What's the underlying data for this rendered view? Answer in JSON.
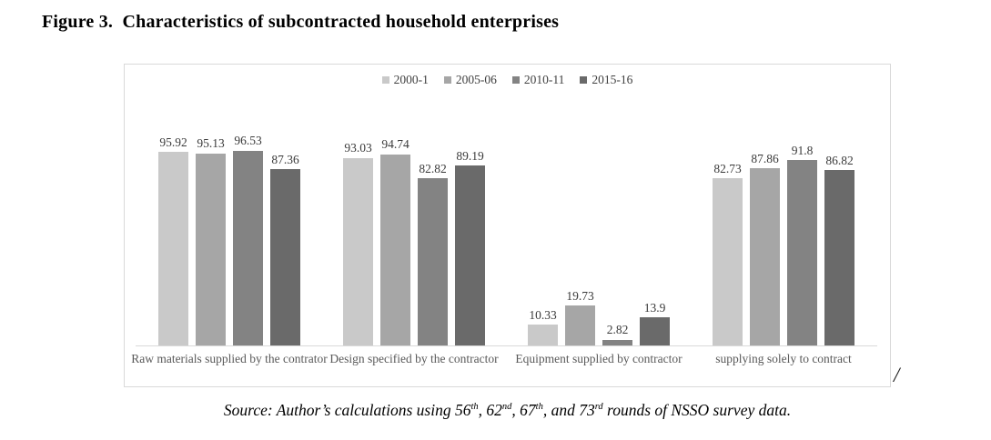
{
  "page": {
    "title": "Figure 3.  Characteristics of subcontracted household enterprises",
    "stray_mark": "/"
  },
  "source_note": {
    "parts": [
      {
        "text": "Source: Author’s calculations using 56"
      },
      {
        "sup": "th"
      },
      {
        "text": ", 62"
      },
      {
        "sup": "nd"
      },
      {
        "text": ", 67"
      },
      {
        "sup": "th"
      },
      {
        "text": ", and 73"
      },
      {
        "sup": "rd"
      },
      {
        "text": " rounds of NSSO survey data."
      }
    ]
  },
  "chart_data": {
    "type": "bar",
    "title": "",
    "xlabel": "",
    "ylabel": "",
    "ylim": [
      0,
      100
    ],
    "grid": false,
    "legend_position": "top-center",
    "axis_line_color": "#d9d9d9",
    "frame_border_color": "#d9d9d9",
    "categories": [
      "Raw materials supplied by the contrator",
      "Design specified by the contractor",
      "Equipment supplied by contractor",
      "supplying solely to contract"
    ],
    "series": [
      {
        "name": "2000-1",
        "color": "#c9c9c9",
        "values": [
          95.92,
          93.03,
          10.33,
          82.73
        ]
      },
      {
        "name": "2005-06",
        "color": "#a6a6a6",
        "values": [
          95.13,
          94.74,
          19.73,
          87.86
        ]
      },
      {
        "name": "2010-11",
        "color": "#838383",
        "values": [
          96.53,
          82.82,
          2.82,
          91.8
        ]
      },
      {
        "name": "2015-16",
        "color": "#6a6a6a",
        "values": [
          87.36,
          89.19,
          13.9,
          86.82
        ]
      }
    ],
    "value_labels": [
      [
        "95.92",
        "95.13",
        "96.53",
        "87.36"
      ],
      [
        "93.03",
        "94.74",
        "82.82",
        "89.19"
      ],
      [
        "10.33",
        "19.73",
        "2.82",
        "13.9"
      ],
      [
        "82.73",
        "87.86",
        "91.8",
        "86.82"
      ]
    ]
  }
}
